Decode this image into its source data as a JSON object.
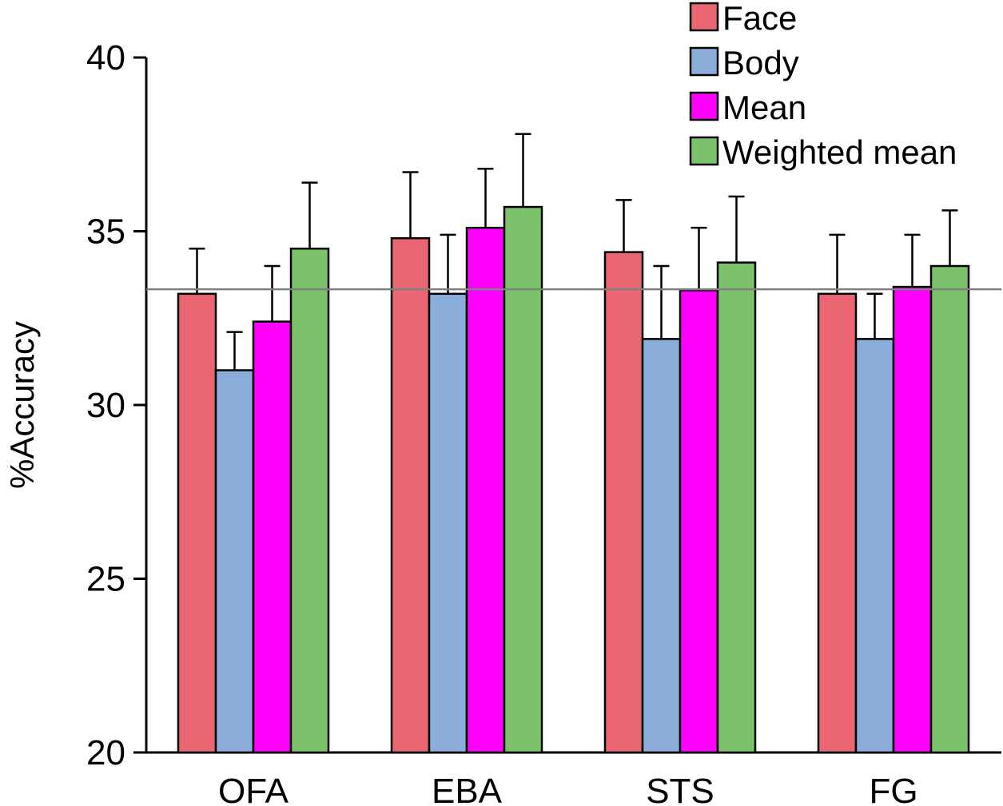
{
  "chart_data": {
    "type": "bar",
    "title": "",
    "xlabel": "",
    "ylabel": "%Accuracy",
    "ylim": [
      20,
      40
    ],
    "yticks": [
      20,
      25,
      30,
      35,
      40
    ],
    "ytick_labels": [
      "20",
      "25",
      "30",
      "35",
      "40"
    ],
    "categories": [
      "OFA",
      "EBA",
      "STS",
      "FG"
    ],
    "reference_line": 33.33,
    "legend_position": "top-right",
    "series": [
      {
        "name": "Face",
        "color": "#ea6672",
        "values": [
          33.2,
          34.8,
          34.4,
          33.2
        ],
        "errors": [
          1.3,
          1.9,
          1.5,
          1.7
        ]
      },
      {
        "name": "Body",
        "color": "#8aadd9",
        "values": [
          31.0,
          33.2,
          31.9,
          31.9
        ],
        "errors": [
          1.1,
          1.7,
          2.1,
          1.3
        ]
      },
      {
        "name": "Mean",
        "color": "#ff00ff",
        "values": [
          32.4,
          35.1,
          33.3,
          33.4
        ],
        "errors": [
          1.6,
          1.7,
          1.8,
          1.5
        ]
      },
      {
        "name": "Weighted mean",
        "color": "#7cc26a",
        "values": [
          34.5,
          35.7,
          34.1,
          34.0
        ],
        "errors": [
          1.9,
          2.1,
          1.9,
          1.6
        ]
      }
    ]
  }
}
